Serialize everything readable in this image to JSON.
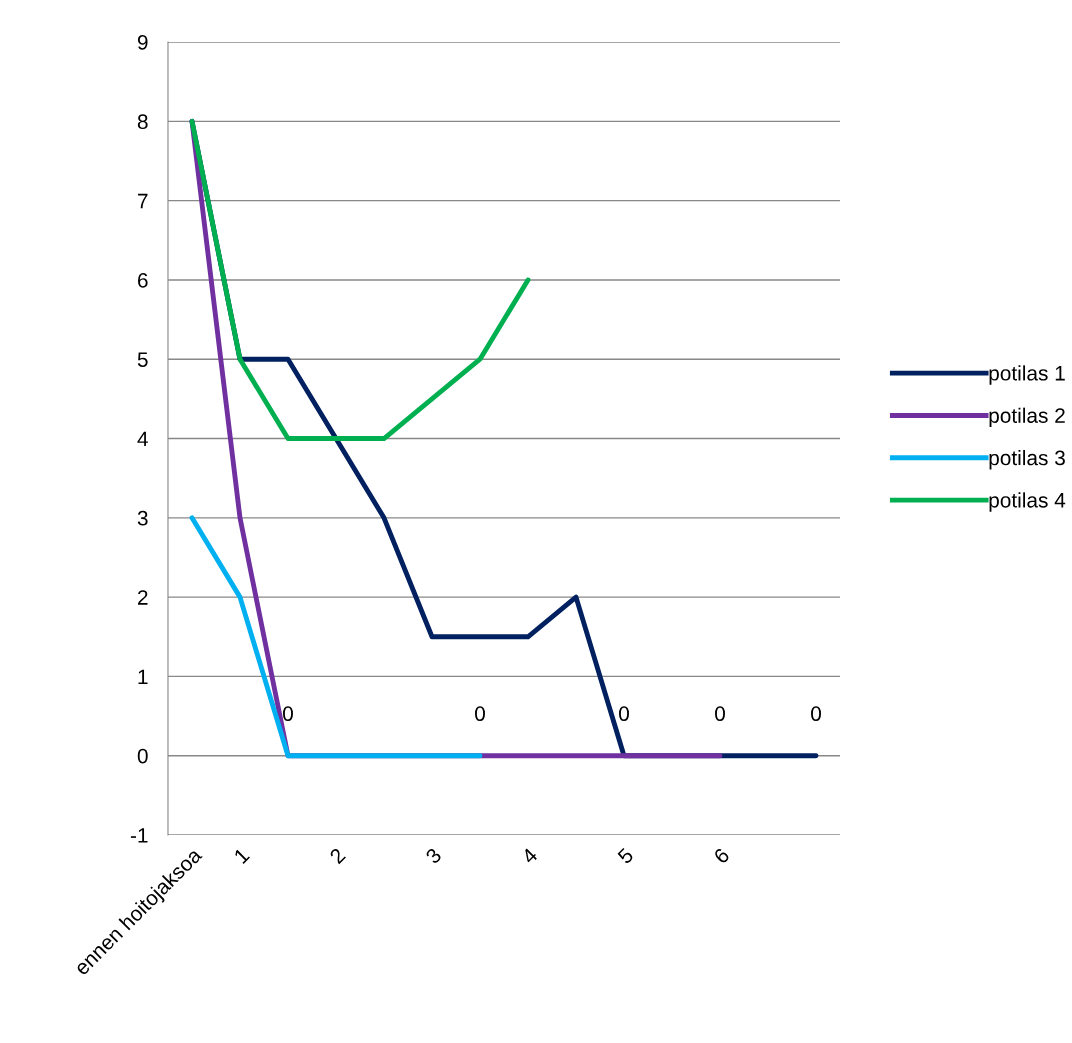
{
  "chart_data": {
    "type": "line",
    "categories": [
      "ennen hoitojaksoa",
      "1",
      null,
      "2",
      null,
      "3",
      null,
      "4",
      null,
      "5",
      null,
      "6",
      null,
      null
    ],
    "series": [
      {
        "name": "potilas 1",
        "color": "#002060",
        "values": [
          8,
          5,
          5,
          4,
          3,
          1.5,
          1.5,
          1.5,
          2,
          0,
          0,
          0,
          0,
          0
        ],
        "value_labels": [
          null,
          null,
          null,
          null,
          null,
          null,
          null,
          null,
          null,
          "0",
          null,
          null,
          null,
          "0"
        ]
      },
      {
        "name": "potilas 2",
        "color": "#7030a0",
        "values": [
          8,
          3,
          0,
          0,
          0,
          0,
          0,
          0,
          0,
          0,
          0,
          0,
          null,
          null
        ],
        "value_labels": [
          null,
          null,
          null,
          null,
          null,
          null,
          null,
          null,
          null,
          null,
          null,
          "0",
          null,
          null
        ]
      },
      {
        "name": "potilas 3",
        "color": "#00b0f0",
        "values": [
          3,
          2,
          0,
          0,
          0,
          0,
          0,
          null,
          null,
          null,
          null,
          null,
          null,
          null
        ],
        "value_labels": [
          null,
          null,
          "0",
          null,
          null,
          null,
          "0",
          null,
          null,
          null,
          null,
          null,
          null,
          null
        ]
      },
      {
        "name": "potilas 4",
        "color": "#00b050",
        "values": [
          8,
          5,
          4,
          4,
          4,
          4.5,
          5,
          6,
          null,
          null,
          null,
          null,
          null,
          null
        ]
      }
    ],
    "ylim": [
      -1,
      9
    ],
    "yticks": [
      -1,
      0,
      1,
      2,
      3,
      4,
      5,
      6,
      7,
      8,
      9
    ],
    "grid": "y",
    "legend": "right",
    "marker": "none",
    "line_style": "solid"
  }
}
